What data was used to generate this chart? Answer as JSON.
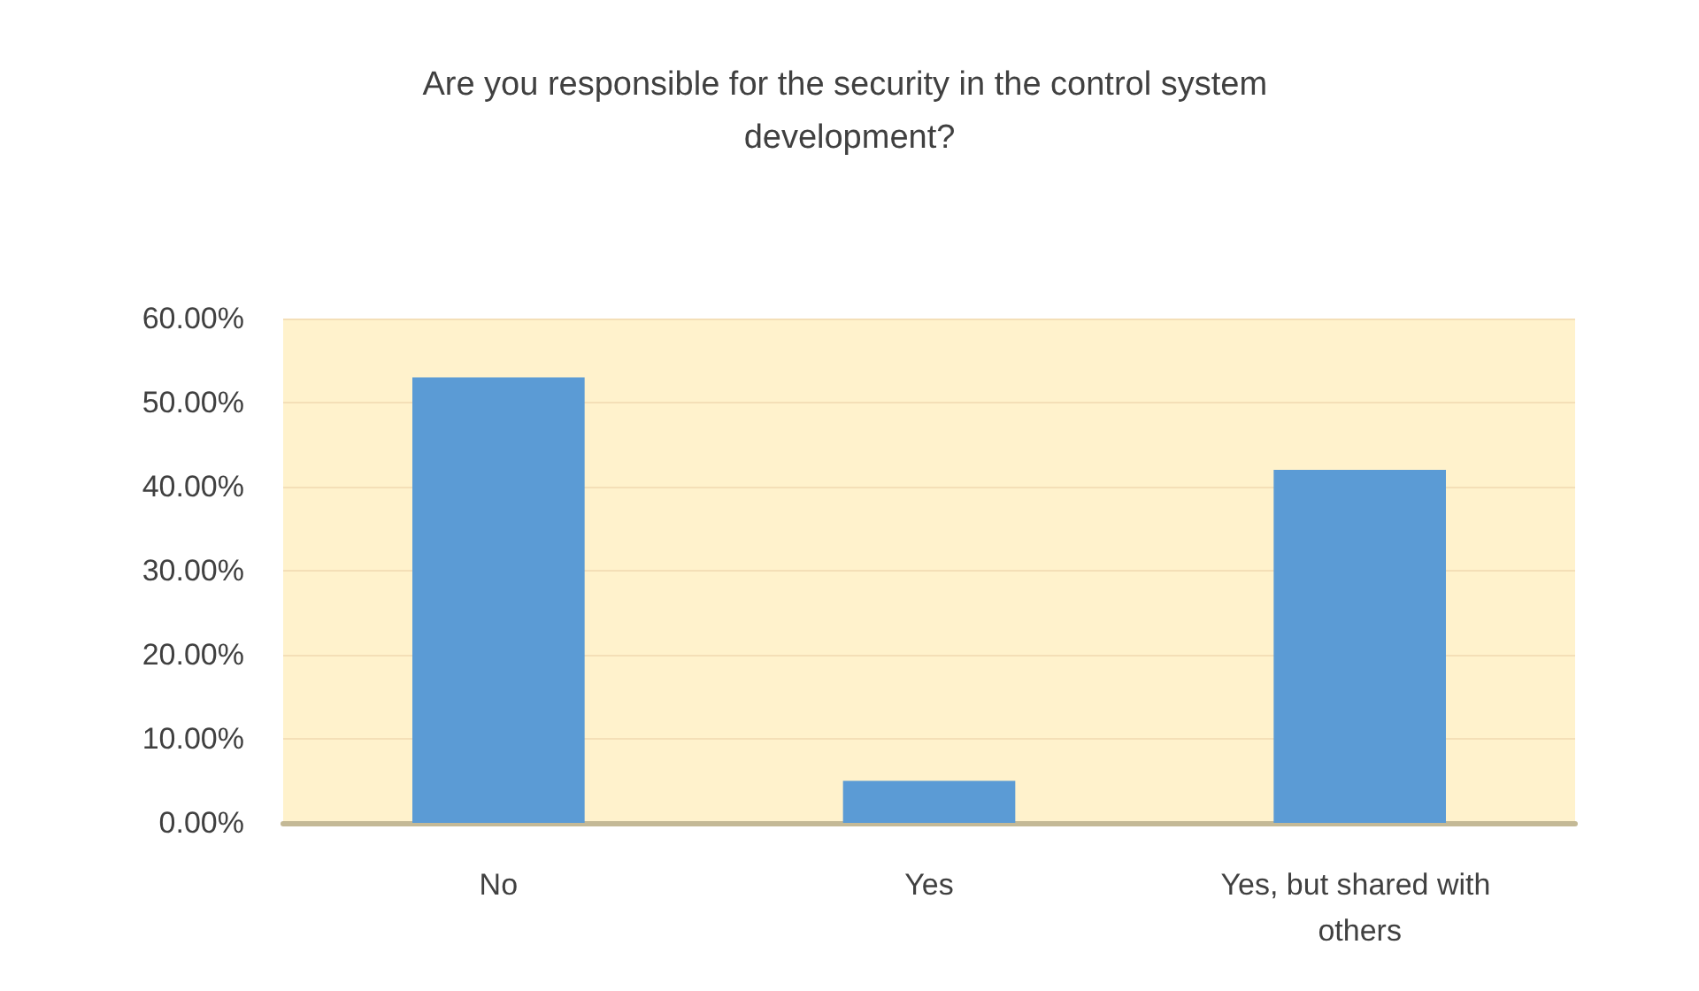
{
  "chart_data": {
    "type": "bar",
    "title": "Are you responsible for the security in the control system development?",
    "categories": [
      "No",
      "Yes",
      "Yes, but shared with others"
    ],
    "values": [
      53,
      5,
      42
    ],
    "color": "#5b9bd5",
    "ylim": [
      0,
      60
    ],
    "yticks": [
      {
        "value": 0,
        "label": "0.00%"
      },
      {
        "value": 10,
        "label": "10.00%"
      },
      {
        "value": 20,
        "label": "20.00%"
      },
      {
        "value": 30,
        "label": "30.00%"
      },
      {
        "value": 40,
        "label": "40.00%"
      },
      {
        "value": 50,
        "label": "50.00%"
      },
      {
        "value": 60,
        "label": "60.00%"
      }
    ],
    "grid": "y"
  }
}
